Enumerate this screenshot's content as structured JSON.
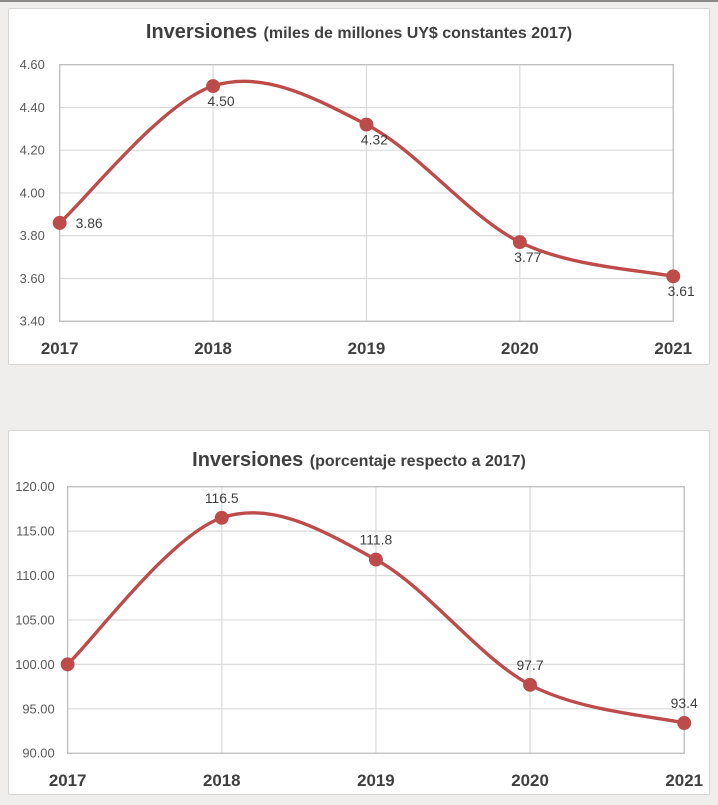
{
  "page": {
    "background": "#f0eeec",
    "card_background": "#ffffff",
    "card_border": "#d8d5d2",
    "top_edge_color": "#8a8a8a"
  },
  "chart_style": {
    "line": "#bd4b4a",
    "marker": "#bd4b4a",
    "grid": "#dadada",
    "plot_border": "#bdbdbd",
    "tick_text": "#595959",
    "category_text": "#3f3f3f",
    "data_label_text": "#3f3f3f",
    "title_text": "#3f3f3f"
  },
  "chart_data": [
    {
      "type": "line",
      "title": "Inversiones (miles de millones UY$ constantes 2017)",
      "title_main": "Inversiones",
      "title_sub": "(miles de millones UY$ constantes 2017)",
      "categories": [
        "2017",
        "2018",
        "2019",
        "2020",
        "2021"
      ],
      "series": [
        {
          "name": "Inversiones",
          "values": [
            3.86,
            4.5,
            4.32,
            3.77,
            3.61
          ]
        }
      ],
      "data_labels": [
        "3.86",
        "4.50",
        "4.32",
        "3.77",
        "3.61"
      ],
      "label_positions": [
        "right",
        "below",
        "below",
        "below",
        "below"
      ],
      "ylim": [
        3.4,
        4.6
      ],
      "ytick_step": 0.2,
      "ytick_decimals": 2,
      "xlabel": "",
      "ylabel": "",
      "grid": true,
      "legend": "none",
      "smooth": true
    },
    {
      "type": "line",
      "title": "Inversiones (porcentaje respecto a 2017)",
      "title_main": "Inversiones",
      "title_sub": "(porcentaje respecto a 2017)",
      "categories": [
        "2017",
        "2018",
        "2019",
        "2020",
        "2021"
      ],
      "series": [
        {
          "name": "Inversiones",
          "values": [
            100.0,
            116.5,
            111.8,
            97.7,
            93.4
          ]
        }
      ],
      "data_labels": [
        "",
        "116.5",
        "111.8",
        "97.7",
        "93.4"
      ],
      "label_positions": [
        "none",
        "above",
        "above",
        "above",
        "above"
      ],
      "ylim": [
        90,
        120
      ],
      "ytick_step": 5,
      "ytick_decimals": 2,
      "xlabel": "",
      "ylabel": "",
      "grid": true,
      "legend": "none",
      "smooth": true
    }
  ]
}
